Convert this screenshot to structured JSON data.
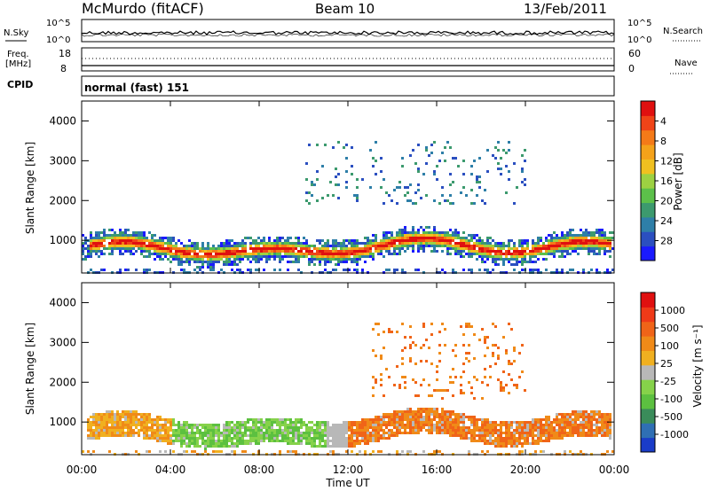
{
  "header": {
    "site": "McMurdo (fitACF)",
    "beam": "Beam 10",
    "date": "13/Feb/2011"
  },
  "noise_panel": {
    "left_label": "N.Sky",
    "left_ticks": [
      "10^5",
      "10^0"
    ],
    "right_ticks": [
      "10^5",
      "10^0"
    ],
    "right_label": "N.Search"
  },
  "freq_panel": {
    "left_label_top": "Freq.",
    "left_label_bottom": "[MHz]",
    "left_ticks": [
      "18",
      "8"
    ],
    "right_ticks": [
      "60",
      "0"
    ],
    "right_label": "Nave"
  },
  "cpid_panel": {
    "label": "CPID",
    "mode": "normal (fast) 151"
  },
  "chart_data": [
    {
      "type": "heatmap",
      "quantity": "power",
      "ylabel": "Slant Range [km]",
      "ylim": [
        180,
        4500
      ],
      "yticks": [
        "1000",
        "2000",
        "3000",
        "4000"
      ],
      "xlim": [
        0,
        24
      ],
      "colorbar": {
        "label": "Power [dB]",
        "ticks": [
          "4",
          "8",
          "12",
          "16",
          "20",
          "24",
          "28"
        ],
        "colors": [
          "#1a1aff",
          "#2b4fc0",
          "#2e7fa8",
          "#3c9a6e",
          "#5cc04a",
          "#9dd142",
          "#f0c020",
          "#f4a21a",
          "#f47a18",
          "#f04418",
          "#e01010"
        ]
      }
    },
    {
      "type": "heatmap",
      "quantity": "velocity",
      "ylabel": "Slant Range [km]",
      "ylim": [
        180,
        4500
      ],
      "yticks": [
        "1000",
        "2000",
        "3000",
        "4000"
      ],
      "xlim": [
        0,
        24
      ],
      "xlabel": "Time UT",
      "xticks": [
        "00:00",
        "04:00",
        "08:00",
        "12:00",
        "16:00",
        "20:00",
        "00:00"
      ],
      "colorbar": {
        "label": "Velocity [m s⁻¹]",
        "ticks": [
          "1000",
          "500",
          "100",
          "25",
          "-25",
          "-100",
          "-500",
          "-1000"
        ],
        "colors": [
          "#1a3cc8",
          "#2f6fb4",
          "#3a8c5a",
          "#5cc040",
          "#86d24a",
          "#b8b8b8",
          "#f0b020",
          "#f08a18",
          "#f06418",
          "#ef3a18",
          "#e01010"
        ]
      }
    }
  ]
}
